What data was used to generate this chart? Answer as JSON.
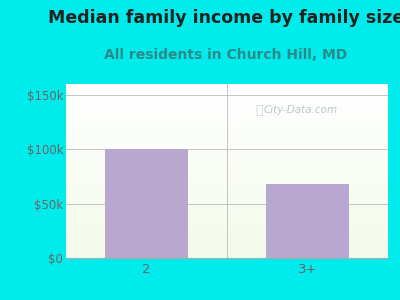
{
  "title": "Median family income by family size",
  "subtitle": "All residents in Church Hill, MD",
  "categories": [
    "2",
    "3+"
  ],
  "values": [
    100000,
    68000
  ],
  "bar_color": "#b8a8d0",
  "outer_bg": "#00ecec",
  "yticks": [
    0,
    50000,
    100000,
    150000
  ],
  "ytick_labels": [
    "$0",
    "$50k",
    "$100k",
    "$150k"
  ],
  "ylim": [
    0,
    160000
  ],
  "title_color": "#222222",
  "subtitle_color": "#2a8a8a",
  "tick_color": "#666666",
  "watermark": "City-Data.com",
  "title_fontsize": 12.5,
  "subtitle_fontsize": 10,
  "tick_fontsize": 8.5,
  "plot_bg_top": "#f0faf5",
  "plot_bg_bottom": "#e8f5e0"
}
